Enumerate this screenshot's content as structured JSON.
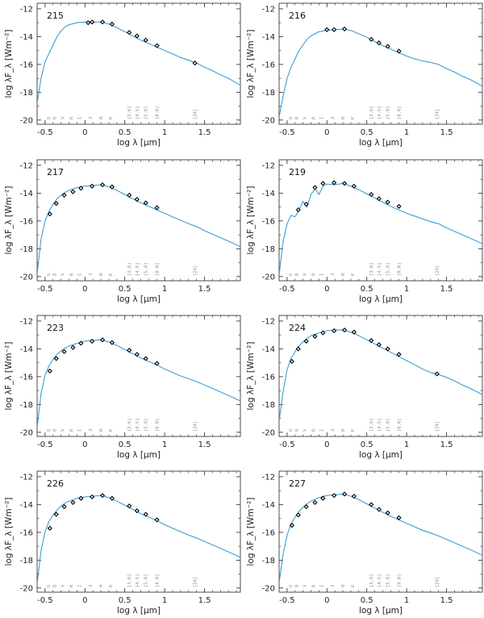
{
  "chart_data": {
    "type": "line",
    "shared": {
      "xlabel": "log λ [μm]",
      "ylabel": "log λF_λ [Wm⁻²]",
      "xlim": [
        -0.6,
        1.95
      ],
      "ylim": [
        -20.3,
        -11.6
      ],
      "xticks": [
        -0.5,
        0,
        0.5,
        1,
        1.5
      ],
      "xtick_labels": [
        "-0.5",
        "0",
        "0.5",
        "1",
        "1.5"
      ],
      "yticks": [
        -20,
        -18,
        -16,
        -14,
        -12
      ],
      "ytick_labels": [
        "-20",
        "-18",
        "-16",
        "-14",
        "-12"
      ],
      "series_color": "#3a9fd6",
      "marker_color": "#000000",
      "bands": [
        {
          "label": "U",
          "x": -0.44
        },
        {
          "label": "B",
          "x": -0.36
        },
        {
          "label": "V",
          "x": -0.26
        },
        {
          "label": "R",
          "x": -0.15
        },
        {
          "label": "I",
          "x": -0.05
        },
        {
          "label": "J",
          "x": 0.09
        },
        {
          "label": "H",
          "x": 0.22
        },
        {
          "label": "K",
          "x": 0.34
        }
      ],
      "irac_bands": [
        {
          "label": "[3.6]",
          "x": 0.556
        },
        {
          "label": "[4.5]",
          "x": 0.653
        },
        {
          "label": "[5.8]",
          "x": 0.763
        },
        {
          "label": "[8.0]",
          "x": 0.903
        }
      ],
      "mips_band": {
        "label": "[24]",
        "x": 1.38
      }
    },
    "panels": [
      {
        "id": "215",
        "model": {
          "x": [
            -0.6,
            -0.55,
            -0.5,
            -0.45,
            -0.4,
            -0.35,
            -0.3,
            -0.25,
            -0.2,
            -0.1,
            0.0,
            0.1,
            0.2,
            0.3,
            0.4,
            0.5,
            0.6,
            0.7,
            0.8,
            0.9,
            1.0,
            1.1,
            1.2,
            1.3,
            1.4,
            1.5,
            1.6,
            1.7,
            1.8,
            1.95
          ],
          "y": [
            -18.8,
            -17.0,
            -15.8,
            -15.2,
            -14.6,
            -14.0,
            -13.6,
            -13.3,
            -13.15,
            -13.0,
            -12.95,
            -12.95,
            -12.95,
            -13.1,
            -13.35,
            -13.65,
            -13.95,
            -14.25,
            -14.5,
            -14.75,
            -15.0,
            -15.25,
            -15.5,
            -15.7,
            -15.9,
            -16.2,
            -16.45,
            -16.75,
            -17.0,
            -17.5
          ]
        },
        "photometry": {
          "x": [
            0.04,
            0.09,
            0.22,
            0.34,
            0.556,
            0.653,
            0.763,
            0.903,
            1.38
          ],
          "y": [
            -13.0,
            -12.95,
            -12.95,
            -13.1,
            -13.7,
            -13.95,
            -14.25,
            -14.65,
            -15.9
          ]
        }
      },
      {
        "id": "216",
        "model": {
          "x": [
            -0.6,
            -0.55,
            -0.5,
            -0.45,
            -0.4,
            -0.35,
            -0.3,
            -0.25,
            -0.2,
            -0.1,
            0.0,
            0.1,
            0.2,
            0.3,
            0.4,
            0.5,
            0.6,
            0.7,
            0.8,
            0.9,
            1.0,
            1.1,
            1.2,
            1.3,
            1.4,
            1.5,
            1.6,
            1.7,
            1.8,
            1.95
          ],
          "y": [
            -19.8,
            -18.3,
            -17.0,
            -16.2,
            -15.6,
            -15.0,
            -14.6,
            -14.2,
            -13.95,
            -13.65,
            -13.55,
            -13.5,
            -13.45,
            -13.55,
            -13.8,
            -14.05,
            -14.35,
            -14.65,
            -14.9,
            -15.15,
            -15.4,
            -15.6,
            -15.75,
            -15.85,
            -16.0,
            -16.3,
            -16.55,
            -16.85,
            -17.1,
            -17.55
          ]
        },
        "photometry": {
          "x": [
            0.0,
            0.09,
            0.22,
            0.556,
            0.653,
            0.763,
            0.903
          ],
          "y": [
            -13.5,
            -13.5,
            -13.45,
            -14.2,
            -14.45,
            -14.7,
            -15.05
          ]
        }
      },
      {
        "id": "217",
        "model": {
          "x": [
            -0.6,
            -0.55,
            -0.5,
            -0.45,
            -0.4,
            -0.35,
            -0.3,
            -0.25,
            -0.2,
            -0.1,
            0.0,
            0.1,
            0.2,
            0.3,
            0.4,
            0.5,
            0.6,
            0.7,
            0.8,
            0.9,
            1.0,
            1.1,
            1.2,
            1.3,
            1.4,
            1.5,
            1.6,
            1.7,
            1.8,
            1.95
          ],
          "y": [
            -19.8,
            -17.3,
            -16.0,
            -15.3,
            -14.8,
            -14.4,
            -14.15,
            -13.95,
            -13.8,
            -13.6,
            -13.5,
            -13.45,
            -13.4,
            -13.55,
            -13.8,
            -14.1,
            -14.4,
            -14.7,
            -14.95,
            -15.2,
            -15.45,
            -15.7,
            -15.95,
            -16.2,
            -16.4,
            -16.7,
            -16.95,
            -17.2,
            -17.45,
            -17.85
          ]
        },
        "photometry": {
          "x": [
            -0.44,
            -0.36,
            -0.26,
            -0.15,
            -0.05,
            0.09,
            0.22,
            0.34,
            0.556,
            0.653,
            0.763,
            0.903
          ],
          "y": [
            -15.5,
            -14.75,
            -14.15,
            -13.9,
            -13.65,
            -13.5,
            -13.4,
            -13.55,
            -14.15,
            -14.45,
            -14.7,
            -15.05
          ]
        }
      },
      {
        "id": "219",
        "model": {
          "x": [
            -0.6,
            -0.55,
            -0.5,
            -0.45,
            -0.4,
            -0.35,
            -0.3,
            -0.25,
            -0.2,
            -0.15,
            -0.1,
            -0.05,
            0.0,
            0.1,
            0.2,
            0.3,
            0.4,
            0.5,
            0.6,
            0.7,
            0.8,
            0.9,
            1.0,
            1.1,
            1.2,
            1.3,
            1.4,
            1.5,
            1.6,
            1.7,
            1.8,
            1.95
          ],
          "y": [
            -19.9,
            -17.5,
            -16.2,
            -15.6,
            -15.7,
            -15.2,
            -14.6,
            -15.0,
            -14.1,
            -13.7,
            -14.1,
            -13.5,
            -13.35,
            -13.4,
            -13.3,
            -13.5,
            -13.75,
            -14.05,
            -14.35,
            -14.65,
            -14.95,
            -15.2,
            -15.45,
            -15.65,
            -15.85,
            -16.05,
            -16.2,
            -16.5,
            -16.75,
            -17.0,
            -17.25,
            -17.65
          ]
        },
        "photometry": {
          "x": [
            -0.36,
            -0.26,
            -0.15,
            -0.05,
            0.09,
            0.22,
            0.34,
            0.556,
            0.653,
            0.763,
            0.903
          ],
          "y": [
            -15.2,
            -14.8,
            -13.6,
            -13.3,
            -13.25,
            -13.3,
            -13.5,
            -14.1,
            -14.4,
            -14.65,
            -14.95
          ]
        }
      },
      {
        "id": "223",
        "model": {
          "x": [
            -0.6,
            -0.55,
            -0.5,
            -0.45,
            -0.4,
            -0.35,
            -0.3,
            -0.25,
            -0.2,
            -0.1,
            0.0,
            0.1,
            0.2,
            0.3,
            0.4,
            0.5,
            0.6,
            0.7,
            0.8,
            0.9,
            1.0,
            1.1,
            1.2,
            1.3,
            1.4,
            1.5,
            1.6,
            1.7,
            1.8,
            1.95
          ],
          "y": [
            -19.7,
            -17.2,
            -15.9,
            -15.2,
            -14.75,
            -14.4,
            -14.15,
            -13.95,
            -13.8,
            -13.6,
            -13.45,
            -13.4,
            -13.35,
            -13.5,
            -13.75,
            -14.05,
            -14.35,
            -14.65,
            -14.9,
            -15.15,
            -15.45,
            -15.7,
            -15.95,
            -16.15,
            -16.35,
            -16.6,
            -16.85,
            -17.1,
            -17.35,
            -17.75
          ]
        },
        "photometry": {
          "x": [
            -0.44,
            -0.36,
            -0.26,
            -0.15,
            -0.05,
            0.09,
            0.22,
            0.34,
            0.556,
            0.653,
            0.763,
            0.903
          ],
          "y": [
            -15.6,
            -14.7,
            -14.2,
            -13.9,
            -13.6,
            -13.45,
            -13.35,
            -13.55,
            -14.1,
            -14.4,
            -14.7,
            -15.05
          ]
        }
      },
      {
        "id": "224",
        "model": {
          "x": [
            -0.6,
            -0.55,
            -0.5,
            -0.45,
            -0.4,
            -0.35,
            -0.3,
            -0.25,
            -0.2,
            -0.1,
            0.0,
            0.1,
            0.2,
            0.3,
            0.4,
            0.5,
            0.6,
            0.7,
            0.8,
            0.9,
            1.0,
            1.1,
            1.2,
            1.3,
            1.4,
            1.5,
            1.6,
            1.7,
            1.8,
            1.95
          ],
          "y": [
            -19.2,
            -17.1,
            -15.5,
            -14.7,
            -14.2,
            -13.8,
            -13.5,
            -13.25,
            -13.05,
            -12.85,
            -12.7,
            -12.65,
            -12.65,
            -12.8,
            -13.05,
            -13.35,
            -13.65,
            -13.95,
            -14.25,
            -14.55,
            -14.85,
            -15.15,
            -15.45,
            -15.7,
            -15.85,
            -16.05,
            -16.3,
            -16.6,
            -16.85,
            -17.3
          ]
        },
        "photometry": {
          "x": [
            -0.44,
            -0.36,
            -0.26,
            -0.15,
            -0.05,
            0.09,
            0.22,
            0.34,
            0.556,
            0.653,
            0.763,
            0.903,
            1.38
          ],
          "y": [
            -14.9,
            -14.0,
            -13.45,
            -13.1,
            -12.85,
            -12.7,
            -12.65,
            -12.8,
            -13.4,
            -13.7,
            -14.0,
            -14.4,
            -15.8
          ]
        }
      },
      {
        "id": "226",
        "model": {
          "x": [
            -0.6,
            -0.55,
            -0.5,
            -0.45,
            -0.4,
            -0.35,
            -0.3,
            -0.25,
            -0.2,
            -0.1,
            0.0,
            0.1,
            0.2,
            0.3,
            0.4,
            0.5,
            0.6,
            0.7,
            0.8,
            0.9,
            1.0,
            1.1,
            1.2,
            1.3,
            1.4,
            1.5,
            1.6,
            1.7,
            1.8,
            1.95
          ],
          "y": [
            -19.7,
            -17.3,
            -15.95,
            -15.2,
            -14.75,
            -14.4,
            -14.1,
            -13.9,
            -13.75,
            -13.55,
            -13.45,
            -13.4,
            -13.35,
            -13.5,
            -13.75,
            -14.05,
            -14.35,
            -14.65,
            -14.9,
            -15.15,
            -15.45,
            -15.7,
            -15.95,
            -16.2,
            -16.4,
            -16.65,
            -16.9,
            -17.15,
            -17.4,
            -17.8
          ]
        },
        "photometry": {
          "x": [
            -0.44,
            -0.36,
            -0.26,
            -0.15,
            -0.05,
            0.09,
            0.22,
            0.34,
            0.556,
            0.653,
            0.763,
            0.903
          ],
          "y": [
            -15.7,
            -14.7,
            -14.15,
            -13.85,
            -13.55,
            -13.45,
            -13.35,
            -13.55,
            -14.1,
            -14.45,
            -14.7,
            -15.1
          ]
        }
      },
      {
        "id": "227",
        "model": {
          "x": [
            -0.6,
            -0.55,
            -0.5,
            -0.45,
            -0.4,
            -0.35,
            -0.3,
            -0.25,
            -0.2,
            -0.1,
            0.0,
            0.1,
            0.2,
            0.3,
            0.4,
            0.5,
            0.6,
            0.7,
            0.8,
            0.9,
            1.0,
            1.1,
            1.2,
            1.3,
            1.4,
            1.5,
            1.6,
            1.7,
            1.8,
            1.95
          ],
          "y": [
            -19.6,
            -17.6,
            -16.2,
            -15.4,
            -14.9,
            -14.5,
            -14.2,
            -13.95,
            -13.75,
            -13.5,
            -13.35,
            -13.3,
            -13.25,
            -13.4,
            -13.65,
            -13.95,
            -14.25,
            -14.55,
            -14.85,
            -15.1,
            -15.35,
            -15.6,
            -15.85,
            -16.05,
            -16.25,
            -16.5,
            -16.75,
            -17.0,
            -17.25,
            -17.65
          ]
        },
        "photometry": {
          "x": [
            -0.44,
            -0.36,
            -0.26,
            -0.15,
            -0.05,
            0.09,
            0.22,
            0.34,
            0.556,
            0.653,
            0.763,
            0.903
          ],
          "y": [
            -15.5,
            -14.75,
            -14.15,
            -13.85,
            -13.55,
            -13.35,
            -13.25,
            -13.4,
            -14.0,
            -14.35,
            -14.6,
            -14.95
          ]
        }
      }
    ]
  }
}
